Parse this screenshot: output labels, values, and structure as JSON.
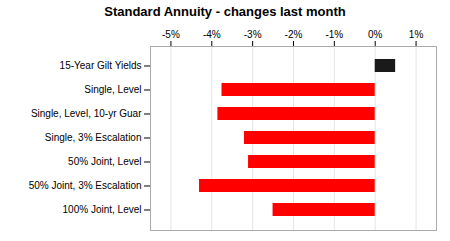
{
  "chart_data": {
    "type": "bar",
    "orientation": "horizontal",
    "title": "Standard Annuity - changes last month",
    "categories": [
      "100% Joint, Level",
      "50% Joint, 3% Escalation",
      "50% Joint, Level",
      "Single, 3% Escalation",
      "Single, Level, 10-yr Guar",
      "Single, Level",
      "15-Year Gilt Yields"
    ],
    "values": [
      -2.5,
      -4.3,
      -3.1,
      -3.2,
      -3.85,
      -3.75,
      0.5
    ],
    "colors": [
      "#ff0000",
      "#ff0000",
      "#ff0000",
      "#ff0000",
      "#ff0000",
      "#ff0000",
      "#1a1a1a"
    ],
    "xlim": [
      -5.5,
      1.5
    ],
    "xticks": [
      {
        "value": -5,
        "label": "-5%"
      },
      {
        "value": -4,
        "label": "-4%"
      },
      {
        "value": -3,
        "label": "-3%"
      },
      {
        "value": -2,
        "label": "-2%"
      },
      {
        "value": -1,
        "label": "-1%"
      },
      {
        "value": 0,
        "label": "0%"
      },
      {
        "value": 1,
        "label": "1%"
      }
    ],
    "grid": true
  }
}
